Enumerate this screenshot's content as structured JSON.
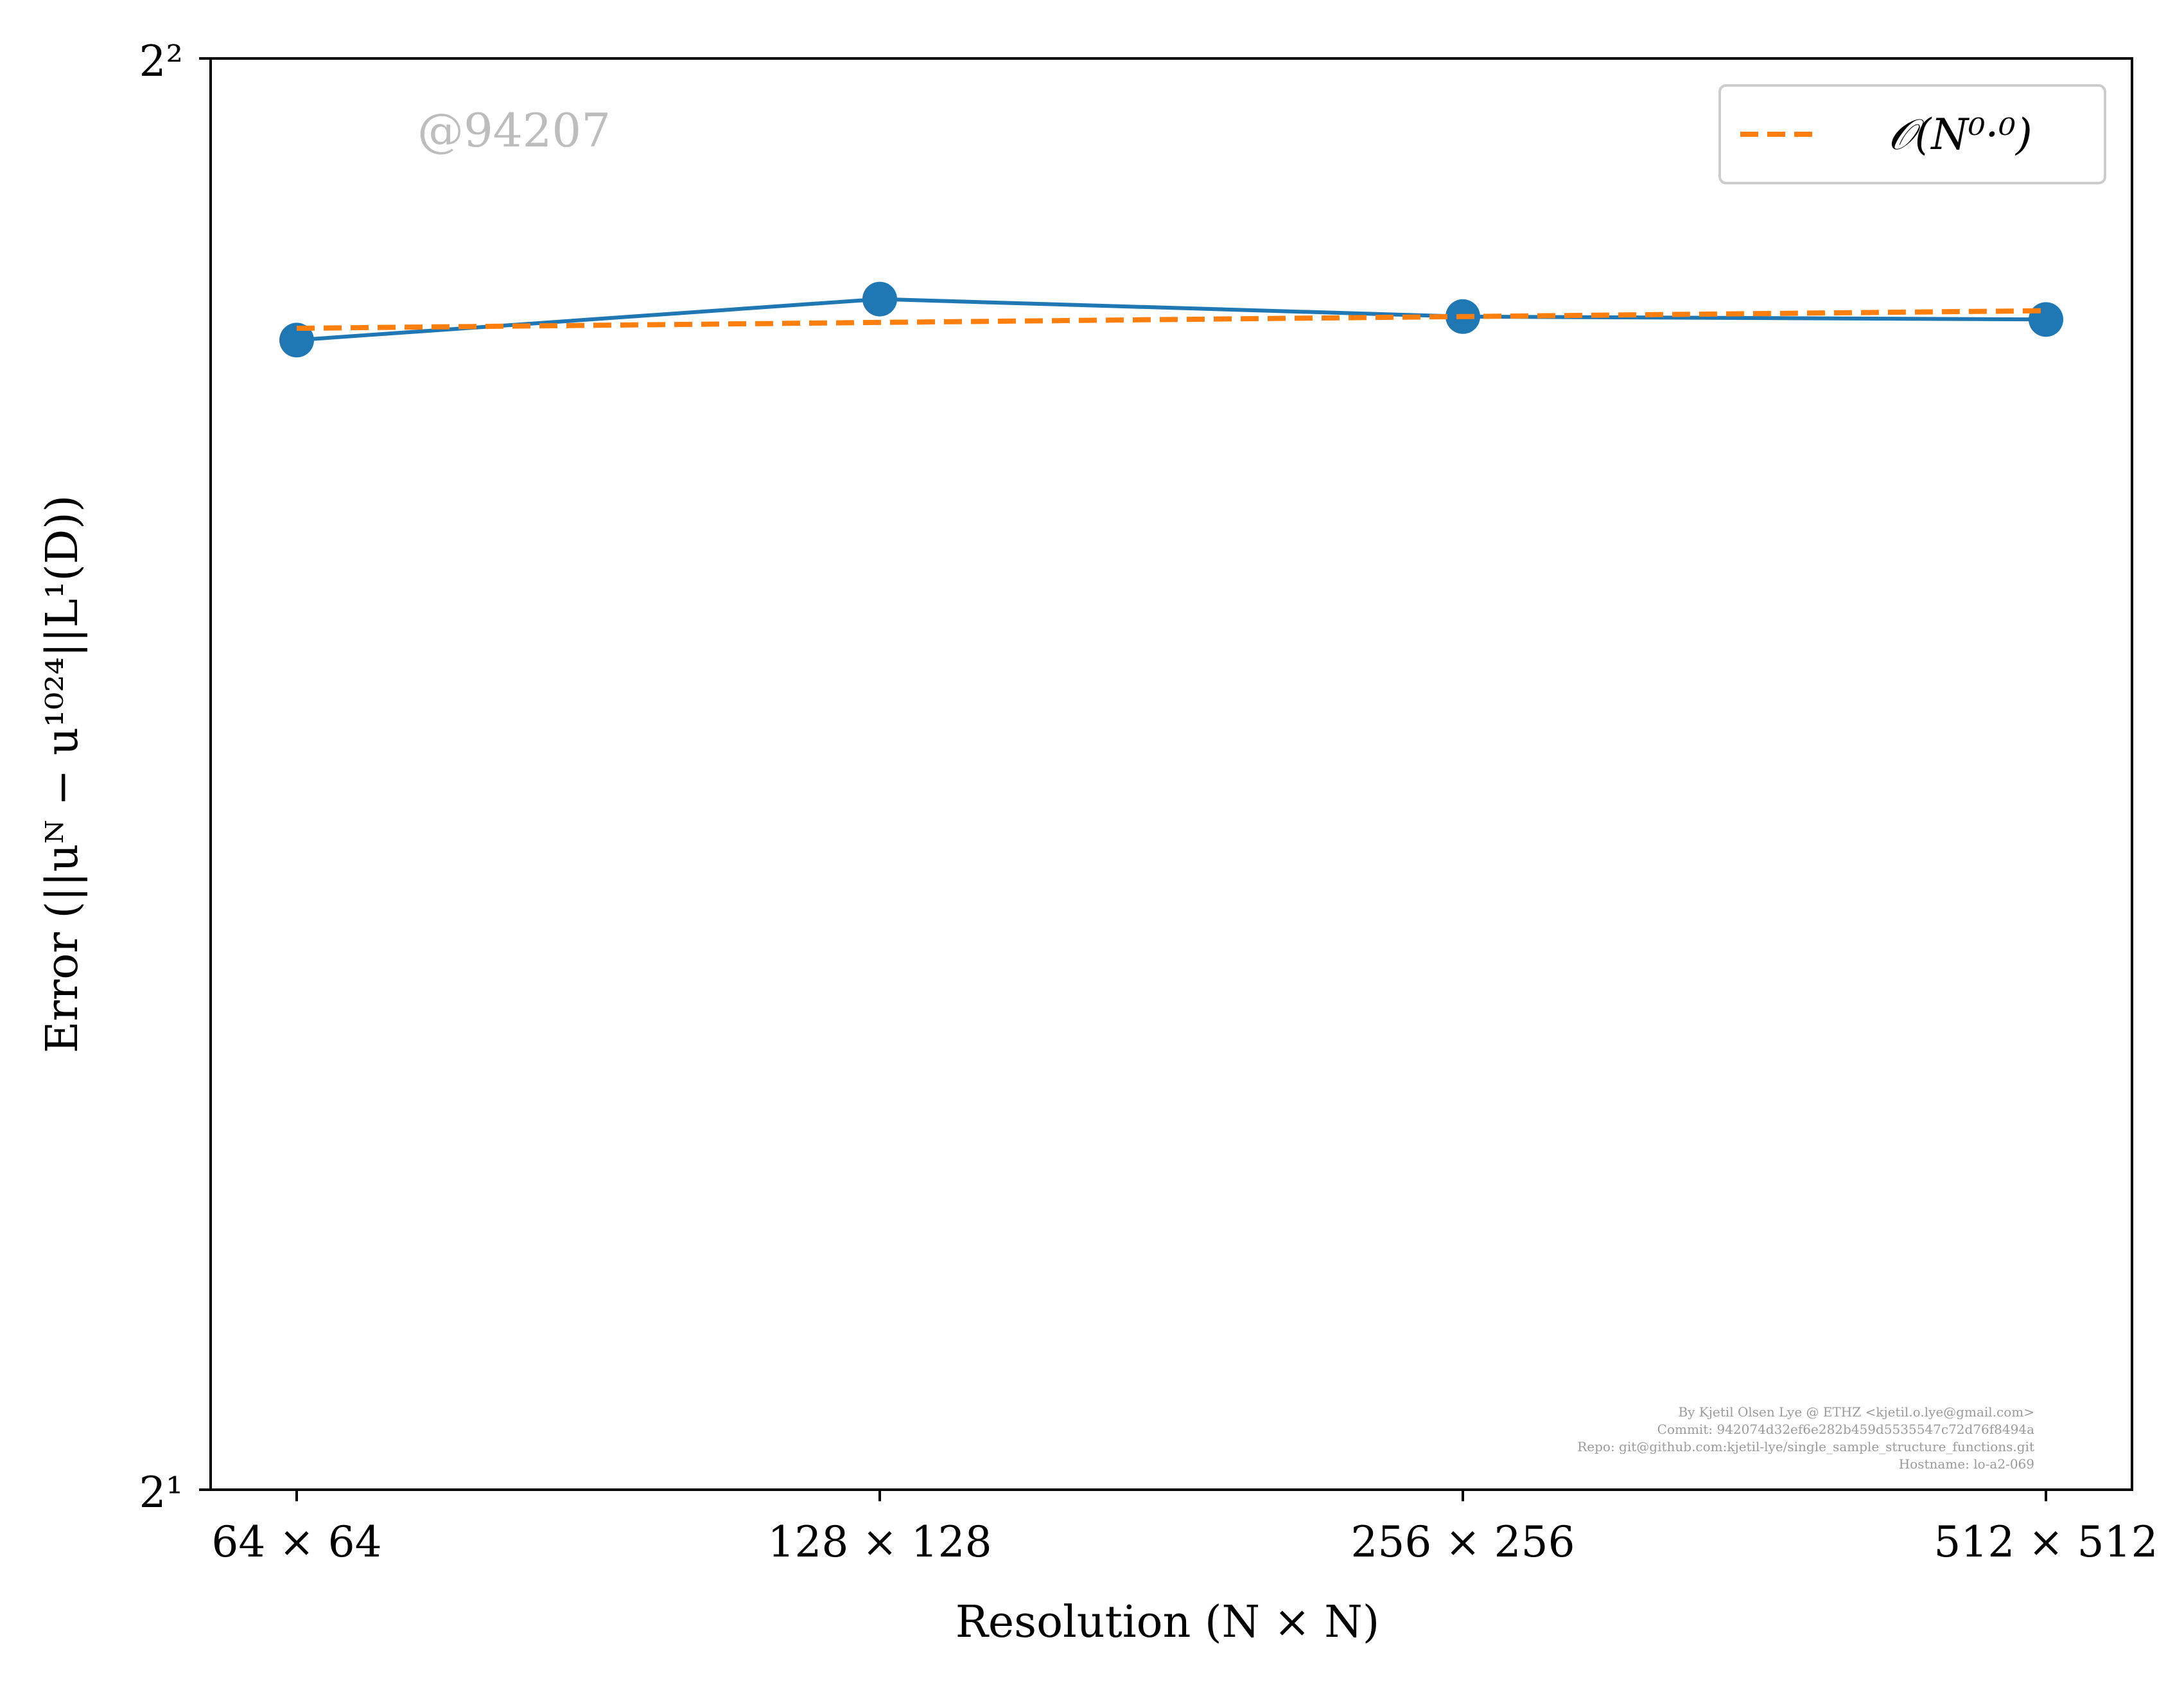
{
  "chart_data": {
    "type": "line",
    "title": "",
    "xlabel": "Resolution (N × N)",
    "ylabel": "Error (||uᴺ − u¹⁰²⁴||L¹(D))",
    "y_scale": "log2",
    "ylim": [
      2,
      4
    ],
    "yticks": [
      {
        "value": 2,
        "label": "2¹"
      },
      {
        "value": 4,
        "label": "2²"
      }
    ],
    "categories": [
      "64 × 64",
      "128 × 128",
      "256 × 256",
      "512 × 512"
    ],
    "series": [
      {
        "name": "",
        "style": "solid-markers",
        "color": "#1f77b4",
        "values": [
          3.49,
          3.56,
          3.53,
          3.525
        ]
      },
      {
        "name": "𝒪(N⁰·⁰)",
        "style": "dashed",
        "color": "#ff7f0e",
        "values": [
          3.51,
          3.52,
          3.53,
          3.54
        ]
      }
    ],
    "legend": {
      "position": "top-right"
    },
    "grid": false
  },
  "watermark": "@94207",
  "footer_lines": [
    "By Kjetil Olsen Lye @ ETHZ <kjetil.o.lye@gmail.com>",
    "Commit: 942074d32ef6e282b459d5535547c72d76f8494a",
    "Repo: git@github.com:kjetil-lye/single_sample_structure_functions.git",
    "Hostname: lo-a2-069"
  ]
}
